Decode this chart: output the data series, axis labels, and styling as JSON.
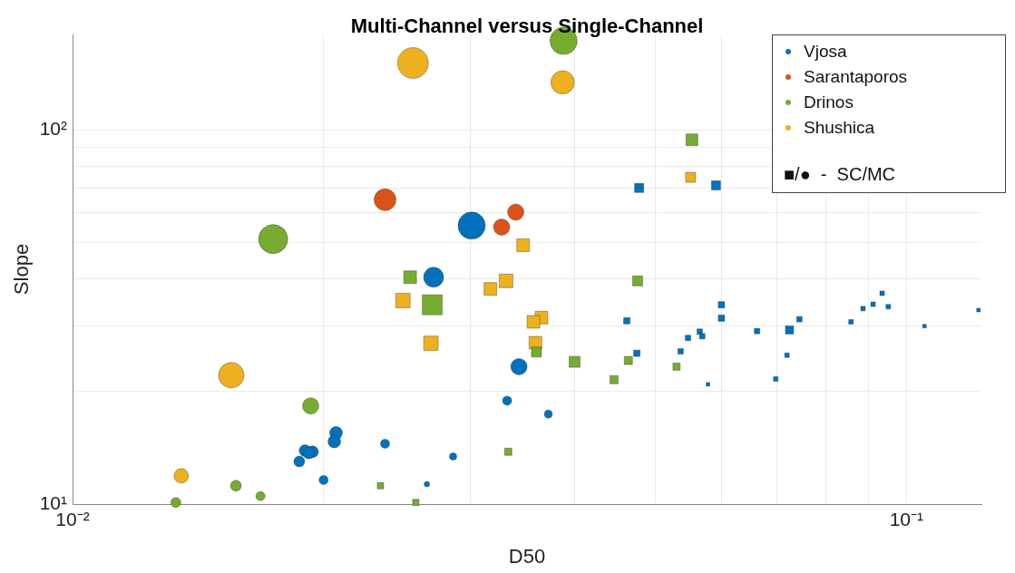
{
  "chart_data": {
    "type": "bubble",
    "title": "Multi-Channel versus Single-Channel",
    "xlabel": "D50",
    "ylabel": "Slope",
    "log": "xy",
    "grid": true,
    "legend": "top right",
    "annotations": [
      "■/●  -  SC/MC"
    ],
    "xlim": [
      0.01,
      0.123
    ],
    "ylim": [
      10,
      180
    ],
    "xticks": [
      {
        "value": 0.01,
        "label": "10⁻²"
      },
      {
        "value": 0.02,
        "label": null
      },
      {
        "value": 0.03,
        "label": null
      },
      {
        "value": 0.04,
        "label": null
      },
      {
        "value": 0.05,
        "label": null
      },
      {
        "value": 0.06,
        "label": null
      },
      {
        "value": 0.07,
        "label": null
      },
      {
        "value": 0.08,
        "label": null
      },
      {
        "value": 0.09,
        "label": null
      },
      {
        "value": 0.1,
        "label": "10⁻¹"
      }
    ],
    "yticks": [
      {
        "value": 10,
        "label": "10¹"
      },
      {
        "value": 20,
        "label": null
      },
      {
        "value": 30,
        "label": null
      },
      {
        "value": 40,
        "label": null
      },
      {
        "value": 50,
        "label": null
      },
      {
        "value": 60,
        "label": null
      },
      {
        "value": 70,
        "label": null
      },
      {
        "value": 80,
        "label": null
      },
      {
        "value": 90,
        "label": null
      },
      {
        "value": 100,
        "label": "10²"
      }
    ],
    "series": [
      {
        "name": "Vjosa",
        "color": "#0072bd",
        "marker": "square",
        "x": [
          0.0478,
          0.0591,
          0.0462,
          0.06,
          0.06,
          0.0475,
          0.0536,
          0.0547,
          0.0565,
          0.0569,
          0.0578,
          0.0662,
          0.0724,
          0.0744,
          0.0719,
          0.0697,
          0.0858,
          0.0887,
          0.0912,
          0.0935,
          0.0951,
          0.1051,
          0.122
        ],
        "values": [
          70.0,
          71.1,
          30.9,
          34.1,
          31.4,
          25.3,
          25.6,
          27.8,
          28.9,
          28.1,
          20.9,
          29.0,
          29.2,
          31.2,
          25.0,
          21.6,
          30.7,
          33.3,
          34.2,
          36.6,
          33.7,
          29.9,
          33.0
        ],
        "sizes": [
          0.111,
          0.111,
          0.054,
          0.054,
          0.054,
          0.054,
          0.04,
          0.04,
          0.04,
          0.04,
          0.018,
          0.04,
          0.089,
          0.04,
          0.028,
          0.028,
          0.028,
          0.028,
          0.028,
          0.028,
          0.028,
          0.018,
          0.018
        ]
      },
      {
        "name": "Sarantaporos",
        "color": "#d95319",
        "marker": "circle",
        "x": [
          0.0237,
          0.034,
          0.0327
        ],
        "values": [
          65.1,
          60.3,
          55.0
        ],
        "sizes": [
          0.5,
          0.28,
          0.28
        ]
      },
      {
        "name": "Drinos",
        "color": "#77ac30",
        "marker": "square",
        "x": [
          0.0553,
          0.0476,
          0.0254,
          0.027,
          0.04,
          0.036,
          0.0464,
          0.0446,
          0.053,
          0.0333,
          0.0234,
          0.0258
        ],
        "values": [
          94.1,
          39.5,
          40.4,
          34.1,
          24.0,
          25.5,
          24.2,
          21.5,
          23.3,
          13.8,
          11.2,
          10.1
        ],
        "sizes": [
          0.186,
          0.134,
          0.217,
          0.535,
          0.159,
          0.134,
          0.089,
          0.089,
          0.07,
          0.07,
          0.054,
          0.054
        ]
      },
      {
        "name": "Shushica",
        "color": "#edb120",
        "marker": "square",
        "x": [
          0.0551,
          0.0347,
          0.0249,
          0.0331,
          0.0317,
          0.0365,
          0.0357,
          0.0359,
          0.0269
        ],
        "values": [
          74.7,
          49.2,
          35.0,
          39.5,
          37.6,
          31.5,
          30.7,
          27.0,
          26.9
        ],
        "sizes": [
          0.134,
          0.217,
          0.28,
          0.249,
          0.217,
          0.217,
          0.217,
          0.217,
          0.28
        ]
      },
      {
        "color": "#0072bd",
        "marker": "circle",
        "x": [
          0.0301,
          0.0271,
          0.0343,
          0.0332,
          0.0372,
          0.0207,
          0.0206,
          0.019,
          0.0194,
          0.0192,
          0.0187,
          0.0237,
          0.0286,
          0.02,
          0.0266
        ],
        "values": [
          55.5,
          40.4,
          23.3,
          18.9,
          17.4,
          15.5,
          14.7,
          13.9,
          13.8,
          13.7,
          13.0,
          14.5,
          13.4,
          11.6,
          11.3
        ],
        "sizes": [
          0.78,
          0.42,
          0.28,
          0.087,
          0.07,
          0.17,
          0.17,
          0.146,
          0.146,
          0.146,
          0.125,
          0.087,
          0.055,
          0.087,
          0.031
        ]
      },
      {
        "color": "#77ac30",
        "marker": "circle",
        "x": [
          0.0388,
          0.0174,
          0.0193,
          0.0157,
          0.0133,
          0.0168
        ],
        "values": [
          173,
          51.1,
          18.3,
          11.2,
          10.1,
          10.5
        ],
        "sizes": [
          0.78,
          0.89,
          0.28,
          0.125,
          0.105,
          0.087
        ]
      },
      {
        "color": "#edb120",
        "marker": "circle",
        "x": [
          0.0256,
          0.0387,
          0.0155,
          0.0135
        ],
        "values": [
          151,
          134,
          22.1,
          11.9
        ],
        "sizes": [
          1,
          0.58,
          0.68,
          0.22
        ]
      }
    ]
  }
}
